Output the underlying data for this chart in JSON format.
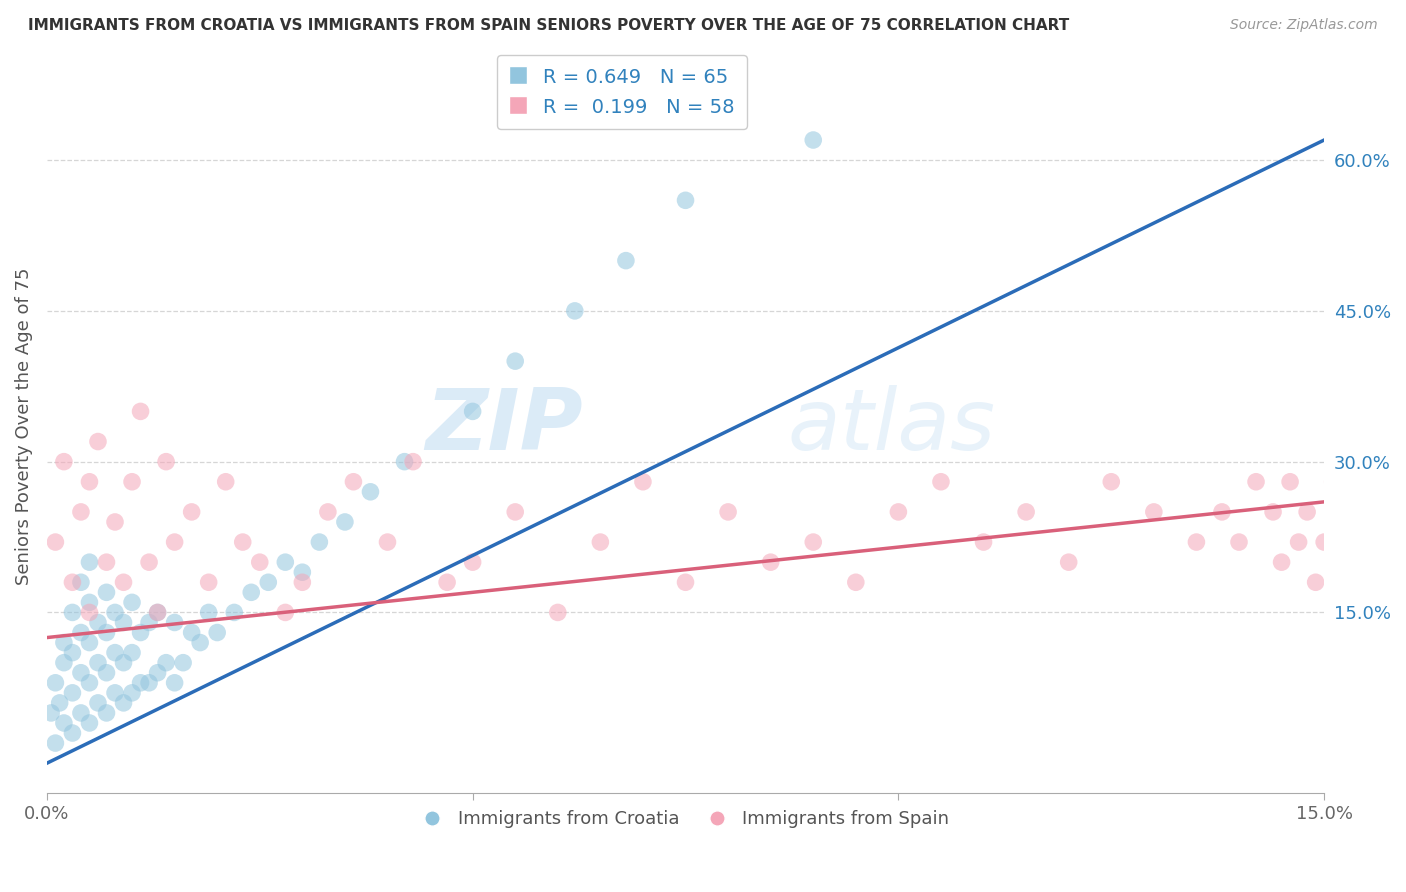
{
  "title": "IMMIGRANTS FROM CROATIA VS IMMIGRANTS FROM SPAIN SENIORS POVERTY OVER THE AGE OF 75 CORRELATION CHART",
  "source": "Source: ZipAtlas.com",
  "ylabel": "Seniors Poverty Over the Age of 75",
  "xlim": [
    0.0,
    0.15
  ],
  "ylim": [
    -0.03,
    0.7
  ],
  "ytick_labels_right": [
    "15.0%",
    "30.0%",
    "45.0%",
    "60.0%"
  ],
  "ytick_vals_right": [
    0.15,
    0.3,
    0.45,
    0.6
  ],
  "croatia_color": "#92c5de",
  "spain_color": "#f4a6b8",
  "croatia_line_color": "#2b6cb8",
  "spain_line_color": "#d9607a",
  "R_croatia": 0.649,
  "N_croatia": 65,
  "R_spain": 0.199,
  "N_spain": 58,
  "watermark_zip": "ZIP",
  "watermark_atlas": "atlas",
  "legend_croatia": "Immigrants from Croatia",
  "legend_spain": "Immigrants from Spain",
  "background_color": "#ffffff",
  "grid_color": "#cccccc",
  "croatia_x": [
    0.0005,
    0.001,
    0.001,
    0.0015,
    0.002,
    0.002,
    0.002,
    0.003,
    0.003,
    0.003,
    0.003,
    0.004,
    0.004,
    0.004,
    0.004,
    0.005,
    0.005,
    0.005,
    0.005,
    0.005,
    0.006,
    0.006,
    0.006,
    0.007,
    0.007,
    0.007,
    0.007,
    0.008,
    0.008,
    0.008,
    0.009,
    0.009,
    0.009,
    0.01,
    0.01,
    0.01,
    0.011,
    0.011,
    0.012,
    0.012,
    0.013,
    0.013,
    0.014,
    0.015,
    0.015,
    0.016,
    0.017,
    0.018,
    0.019,
    0.02,
    0.022,
    0.024,
    0.026,
    0.028,
    0.03,
    0.032,
    0.035,
    0.038,
    0.042,
    0.05,
    0.055,
    0.062,
    0.068,
    0.075,
    0.09
  ],
  "croatia_y": [
    0.05,
    0.02,
    0.08,
    0.06,
    0.04,
    0.1,
    0.12,
    0.03,
    0.07,
    0.11,
    0.15,
    0.05,
    0.09,
    0.13,
    0.18,
    0.04,
    0.08,
    0.12,
    0.16,
    0.2,
    0.06,
    0.1,
    0.14,
    0.05,
    0.09,
    0.13,
    0.17,
    0.07,
    0.11,
    0.15,
    0.06,
    0.1,
    0.14,
    0.07,
    0.11,
    0.16,
    0.08,
    0.13,
    0.08,
    0.14,
    0.09,
    0.15,
    0.1,
    0.08,
    0.14,
    0.1,
    0.13,
    0.12,
    0.15,
    0.13,
    0.15,
    0.17,
    0.18,
    0.2,
    0.19,
    0.22,
    0.24,
    0.27,
    0.3,
    0.35,
    0.4,
    0.45,
    0.5,
    0.56,
    0.62
  ],
  "spain_x": [
    0.001,
    0.002,
    0.003,
    0.004,
    0.005,
    0.005,
    0.006,
    0.007,
    0.008,
    0.009,
    0.01,
    0.011,
    0.012,
    0.013,
    0.014,
    0.015,
    0.017,
    0.019,
    0.021,
    0.023,
    0.025,
    0.028,
    0.03,
    0.033,
    0.036,
    0.04,
    0.043,
    0.047,
    0.05,
    0.055,
    0.06,
    0.065,
    0.07,
    0.075,
    0.08,
    0.085,
    0.09,
    0.095,
    0.1,
    0.105,
    0.11,
    0.115,
    0.12,
    0.125,
    0.13,
    0.135,
    0.138,
    0.14,
    0.142,
    0.144,
    0.145,
    0.146,
    0.147,
    0.148,
    0.149,
    0.15,
    0.151,
    0.152
  ],
  "spain_y": [
    0.22,
    0.3,
    0.18,
    0.25,
    0.15,
    0.28,
    0.32,
    0.2,
    0.24,
    0.18,
    0.28,
    0.35,
    0.2,
    0.15,
    0.3,
    0.22,
    0.25,
    0.18,
    0.28,
    0.22,
    0.2,
    0.15,
    0.18,
    0.25,
    0.28,
    0.22,
    0.3,
    0.18,
    0.2,
    0.25,
    0.15,
    0.22,
    0.28,
    0.18,
    0.25,
    0.2,
    0.22,
    0.18,
    0.25,
    0.28,
    0.22,
    0.25,
    0.2,
    0.28,
    0.25,
    0.22,
    0.25,
    0.22,
    0.28,
    0.25,
    0.2,
    0.28,
    0.22,
    0.25,
    0.18,
    0.22,
    0.28,
    0.25
  ],
  "croatia_line_x": [
    0.0,
    0.15
  ],
  "croatia_line_y": [
    0.0,
    0.62
  ],
  "spain_line_x": [
    0.0,
    0.15
  ],
  "spain_line_y": [
    0.125,
    0.26
  ]
}
